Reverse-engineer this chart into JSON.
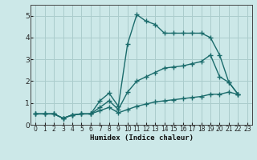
{
  "xlabel": "Humidex (Indice chaleur)",
  "background_color": "#cce8e8",
  "grid_color": "#aacccc",
  "line_color": "#1a6b6b",
  "marker": "+",
  "marker_size": 4,
  "line_width": 1.0,
  "xlim": [
    -0.5,
    23.5
  ],
  "ylim": [
    0,
    5.5
  ],
  "xticks": [
    0,
    1,
    2,
    3,
    4,
    5,
    6,
    7,
    8,
    9,
    10,
    11,
    12,
    13,
    14,
    15,
    16,
    17,
    18,
    19,
    20,
    21,
    22,
    23
  ],
  "yticks": [
    0,
    1,
    2,
    3,
    4,
    5
  ],
  "series1": {
    "x": [
      0,
      1,
      2,
      3,
      4,
      5,
      6,
      7,
      8,
      9,
      10,
      11,
      12,
      13,
      14,
      15,
      16,
      17,
      18,
      19,
      20,
      21,
      22
    ],
    "y": [
      0.5,
      0.5,
      0.5,
      0.3,
      0.45,
      0.5,
      0.5,
      1.1,
      1.45,
      0.85,
      3.7,
      5.05,
      4.75,
      4.6,
      4.2,
      4.2,
      4.2,
      4.2,
      4.2,
      4.0,
      3.2,
      1.95,
      1.4
    ]
  },
  "series2": {
    "x": [
      0,
      1,
      2,
      3,
      4,
      5,
      6,
      7,
      8,
      9,
      10,
      11,
      12,
      13,
      14,
      15,
      16,
      17,
      18,
      19,
      20,
      21,
      22
    ],
    "y": [
      0.5,
      0.5,
      0.5,
      0.3,
      0.45,
      0.5,
      0.5,
      0.8,
      1.1,
      0.7,
      1.5,
      2.0,
      2.2,
      2.4,
      2.6,
      2.65,
      2.7,
      2.8,
      2.9,
      3.2,
      2.2,
      1.95,
      1.4
    ]
  },
  "series3": {
    "x": [
      0,
      1,
      2,
      3,
      4,
      5,
      6,
      7,
      8,
      9,
      10,
      11,
      12,
      13,
      14,
      15,
      16,
      17,
      18,
      19,
      20,
      21,
      22
    ],
    "y": [
      0.5,
      0.5,
      0.5,
      0.3,
      0.45,
      0.5,
      0.5,
      0.65,
      0.8,
      0.55,
      0.7,
      0.85,
      0.95,
      1.05,
      1.1,
      1.15,
      1.2,
      1.25,
      1.3,
      1.4,
      1.4,
      1.5,
      1.4
    ]
  }
}
